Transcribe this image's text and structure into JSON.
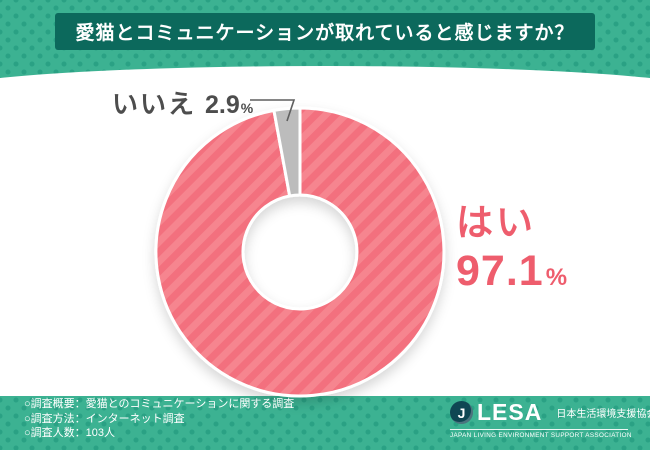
{
  "header": {
    "title": "愛猫とコミュニケーションが取れていると感じますか？"
  },
  "chart_data": {
    "type": "pie",
    "donut": true,
    "title": "愛猫とコミュニケーションが取れていると感じますか？",
    "unit": "%",
    "start_angle_deg": 0,
    "direction": "clockwise",
    "segments": [
      {
        "id": "yes",
        "label": "はい",
        "value": 97.1,
        "color": "#f3707e",
        "striped": true
      },
      {
        "id": "no",
        "label": "いいえ",
        "value": 2.9,
        "color": "#bcbcbc",
        "striped": false
      }
    ]
  },
  "callouts": {
    "yes": {
      "label": "はい",
      "value": "97.1",
      "unit": "%"
    },
    "no": {
      "label": "いいえ",
      "value": "2.9",
      "unit": "%"
    }
  },
  "survey": {
    "lines": [
      "○調査概要：愛猫とのコミュニケーションに関する調査",
      "○調査方法：インターネット調査",
      "○調査人数：103人"
    ]
  },
  "logo": {
    "monogram": "J",
    "name": "LESA",
    "jp_name": "日本生活環境支援協会",
    "en_name": "JAPAN LIVING ENVIRONMENT SUPPORT ASSOCIATION"
  },
  "colors": {
    "background": "#3cb292",
    "background_dot": "#2aa184",
    "banner": "#0c695c",
    "yes": "#f3707e",
    "yes_stripe": "#f6858f",
    "yes_text": "#ee5d6d",
    "no": "#bcbcbc",
    "text_dark": "#4d4d4d"
  }
}
